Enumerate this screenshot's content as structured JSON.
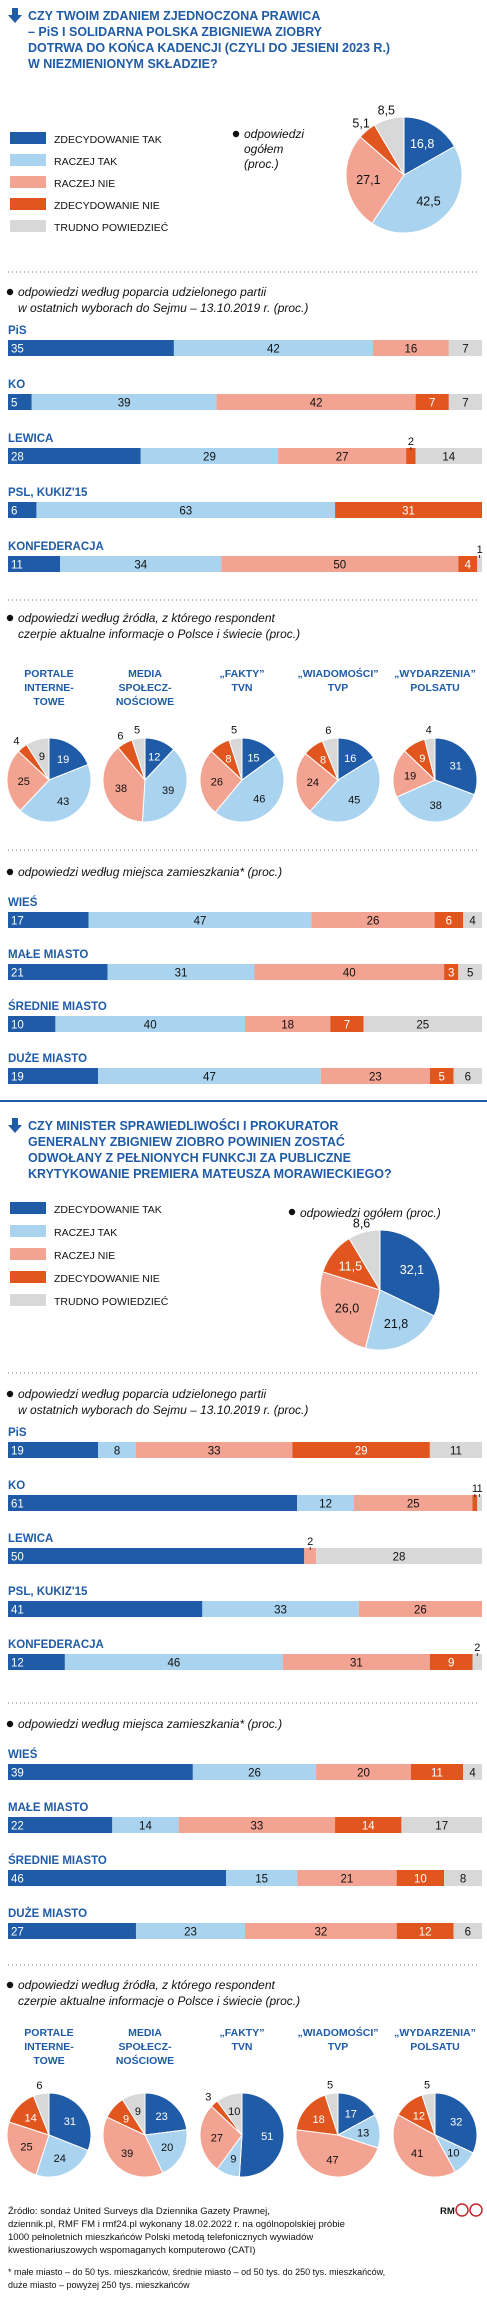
{
  "colors": {
    "darkblue": "#1f5ba7",
    "lightblue": "#a9d3ef",
    "salmon": "#f2a391",
    "orange": "#e0561e",
    "gray": "#d8d8d8"
  },
  "legend_labels": [
    "ZDECYDOWANIE TAK",
    "RACZEJ TAK",
    "RACZEJ NIE",
    "ZDECYDOWANIE NIE",
    "TRUDNO POWIEDZIEĆ"
  ],
  "q1": {
    "title_lines": [
      "CZY TWOIM ZDANIEM ZJEDNOCZONA PRAWICA",
      "– PiS I SOLIDARNA POLSKA ZBIGNIEWA ZIOBRY",
      "DOTRWA DO KOŃCA KADENCJI (CZYLI DO JESIENI 2023 R.)",
      "W NIEZMIENIONYM SKŁADZIE?"
    ],
    "overall_label_lines": [
      "odpowiedzi",
      "ogółem",
      "(proc.)"
    ],
    "party_heading_lines": [
      "odpowiedzi według poparcia udzielonego partii",
      "w ostatnich wyborach do Sejmu – 13.10.2019 r. (proc.)"
    ],
    "source_heading_lines": [
      "odpowiedzi według źródła, z którego respondent",
      "czerpie aktualne informacje o Polsce i świecie (proc.)"
    ],
    "place_heading_lines": [
      "odpowiedzi według miejsca zamieszkania* (proc.)"
    ]
  },
  "q2": {
    "title_lines": [
      "CZY MINISTER SPRAWIEDLIWOŚCI I PROKURATOR",
      "GENERALNY ZBIGNIEW ZIOBRO POWINIEN ZOSTAĆ",
      "ODWOŁANY Z PEŁNIONYCH FUNKCJI ZA PUBLICZNE",
      "KRYTYKOWANIE PREMIERA MATEUSZA MORAWIECKIEGO?"
    ],
    "overall_label": "odpowiedzi ogółem (proc.)",
    "party_heading_lines": [
      "odpowiedzi według poparcia udzielonego partii",
      "w ostatnich wyborach do Sejmu – 13.10.2019 r. (proc.)"
    ],
    "place_heading_lines": [
      "odpowiedzi według miejsca zamieszkania* (proc.)"
    ],
    "source_heading_lines": [
      "odpowiedzi według źródła, z którego respondent",
      "czerpie aktualne informacje o Polsce i świecie (proc.)"
    ]
  },
  "footer": {
    "lines": [
      "Źródło: sondaż United Surveys dla Dziennika Gazety Prawnej,",
      "dziennik.pl, RMF FM i rmf24.pl wykonany 18.02.2022 r. na ogólnopolskiej próbie",
      "1000 pełnoletnich mieszkańców Polski metodą telefonicznych wywiadów",
      "kwestionariuszowych wspomaganych komputerowo (CATI)"
    ],
    "note_lines": [
      "* małe miasto – do 50 tys. mieszkańców, średnie miasto – od 50 tys. do 250 tys. mieszkańców,",
      "duże miasto – powyżej 250 tys. mieszkańców"
    ],
    "credit": "RM"
  },
  "chart_data": [
    {
      "type": "pie",
      "id": "q1-overall",
      "categories": [
        "ZDECYDOWANIE TAK",
        "RACZEJ TAK",
        "RACZEJ NIE",
        "ZDECYDOWANIE NIE",
        "TRUDNO POWIEDZIEĆ"
      ],
      "values": [
        16.8,
        42.5,
        27.1,
        5.1,
        8.5
      ],
      "labels": [
        "16,8",
        "42,5",
        "27,1",
        "5,1",
        "8,5"
      ]
    },
    {
      "type": "bar",
      "id": "q1-party",
      "stacked": true,
      "categories": [
        "PiS",
        "KO",
        "LEWICA",
        "PSL, KUKIZ'15",
        "KONFEDERACJA"
      ],
      "series": [
        {
          "name": "ZDECYDOWANIE TAK",
          "values": [
            35,
            5,
            28,
            6,
            11
          ]
        },
        {
          "name": "RACZEJ TAK",
          "values": [
            42,
            39,
            29,
            63,
            34
          ]
        },
        {
          "name": "RACZEJ NIE",
          "values": [
            16,
            42,
            27,
            0,
            50
          ]
        },
        {
          "name": "ZDECYDOWANIE NIE",
          "values": [
            0,
            7,
            2,
            31,
            4
          ]
        },
        {
          "name": "TRUDNO POWIEDZIEĆ",
          "values": [
            7,
            7,
            14,
            0,
            1
          ]
        }
      ]
    },
    {
      "type": "pie",
      "id": "q1-sources",
      "titles": [
        "PORTALE INTERNE-TOWE",
        "MEDIA SPOŁECZ-NOŚCIOWE",
        "„FAKTY” TVN",
        "„WIADOMOŚCI” TVP",
        "„WYDARZENIA” POLSATU"
      ],
      "title_lines": [
        [
          "PORTALE",
          "INTERNE-",
          "TOWE"
        ],
        [
          "MEDIA",
          "SPOŁECZ-",
          "NOŚCIOWE"
        ],
        [
          "„FAKTY”",
          "TVN"
        ],
        [
          "„WIADOMOŚCI”",
          "TVP"
        ],
        [
          "„WYDARZENIA”",
          "POLSATU"
        ]
      ],
      "pies": [
        {
          "values": [
            19,
            43,
            25,
            4,
            9
          ]
        },
        {
          "values": [
            12,
            39,
            38,
            6,
            5
          ]
        },
        {
          "values": [
            15,
            46,
            26,
            8,
            5
          ]
        },
        {
          "values": [
            16,
            45,
            24,
            8,
            6
          ]
        },
        {
          "values": [
            31,
            38,
            19,
            9,
            4
          ]
        }
      ]
    },
    {
      "type": "bar",
      "id": "q1-place",
      "stacked": true,
      "categories": [
        "WIEŚ",
        "MAŁE MIASTO",
        "ŚREDNIE MIASTO",
        "DUŻE MIASTO"
      ],
      "series": [
        {
          "name": "ZDECYDOWANIE TAK",
          "values": [
            17,
            21,
            10,
            19
          ]
        },
        {
          "name": "RACZEJ TAK",
          "values": [
            47,
            31,
            40,
            47
          ]
        },
        {
          "name": "RACZEJ NIE",
          "values": [
            26,
            40,
            18,
            23
          ]
        },
        {
          "name": "ZDECYDOWANIE NIE",
          "values": [
            6,
            3,
            7,
            5
          ]
        },
        {
          "name": "TRUDNO POWIEDZIEĆ",
          "values": [
            4,
            5,
            25,
            6
          ]
        }
      ]
    },
    {
      "type": "pie",
      "id": "q2-overall",
      "categories": [
        "ZDECYDOWANIE TAK",
        "RACZEJ TAK",
        "RACZEJ NIE",
        "ZDECYDOWANIE NIE",
        "TRUDNO POWIEDZIEĆ"
      ],
      "values": [
        32.1,
        21.8,
        26.0,
        11.5,
        8.6
      ],
      "labels": [
        "32,1",
        "21,8",
        "26,0",
        "11,5",
        "8,6"
      ]
    },
    {
      "type": "bar",
      "id": "q2-party",
      "stacked": true,
      "categories": [
        "PiS",
        "KO",
        "LEWICA",
        "PSL, KUKIZ'15",
        "KONFEDERACJA"
      ],
      "series": [
        {
          "name": "ZDECYDOWANIE TAK",
          "values": [
            19,
            61,
            50,
            41,
            12
          ]
        },
        {
          "name": "RACZEJ TAK",
          "values": [
            8,
            12,
            0,
            33,
            46
          ]
        },
        {
          "name": "RACZEJ NIE",
          "values": [
            33,
            25,
            2,
            26,
            31
          ]
        },
        {
          "name": "ZDECYDOWANIE NIE",
          "values": [
            29,
            1,
            0,
            0,
            9
          ]
        },
        {
          "name": "TRUDNO POWIEDZIEĆ",
          "values": [
            11,
            1,
            28,
            0,
            2
          ]
        }
      ]
    },
    {
      "type": "bar",
      "id": "q2-place",
      "stacked": true,
      "categories": [
        "WIEŚ",
        "MAŁE MIASTO",
        "ŚREDNIE MIASTO",
        "DUŻE MIASTO"
      ],
      "series": [
        {
          "name": "ZDECYDOWANIE TAK",
          "values": [
            39,
            22,
            46,
            27
          ]
        },
        {
          "name": "RACZEJ TAK",
          "values": [
            26,
            14,
            15,
            23
          ]
        },
        {
          "name": "RACZEJ NIE",
          "values": [
            20,
            33,
            21,
            32
          ]
        },
        {
          "name": "ZDECYDOWANIE NIE",
          "values": [
            11,
            14,
            10,
            12
          ]
        },
        {
          "name": "TRUDNO POWIEDZIEĆ",
          "values": [
            4,
            17,
            8,
            6
          ]
        }
      ]
    },
    {
      "type": "pie",
      "id": "q2-sources",
      "titles": [
        "PORTALE INTERNE-TOWE",
        "MEDIA SPOŁECZ-NOŚCIOWE",
        "„FAKTY” TVN",
        "„WIADOMOŚCI” TVP",
        "„WYDARZENIA” POLSATU"
      ],
      "title_lines": [
        [
          "PORTALE",
          "INTERNE-",
          "TOWE"
        ],
        [
          "MEDIA",
          "SPOŁECZ-",
          "NOŚCIOWE"
        ],
        [
          "„FAKTY”",
          "TVN"
        ],
        [
          "„WIADOMOŚCI”",
          "TVP"
        ],
        [
          "„WYDARZENIA”",
          "POLSATU"
        ]
      ],
      "pies": [
        {
          "values": [
            31,
            24,
            25,
            14,
            6
          ]
        },
        {
          "values": [
            23,
            20,
            39,
            9,
            9
          ]
        },
        {
          "values": [
            51,
            9,
            27,
            3,
            10
          ]
        },
        {
          "values": [
            17,
            13,
            47,
            18,
            5
          ]
        },
        {
          "values": [
            32,
            10,
            41,
            12,
            5
          ]
        }
      ]
    }
  ]
}
